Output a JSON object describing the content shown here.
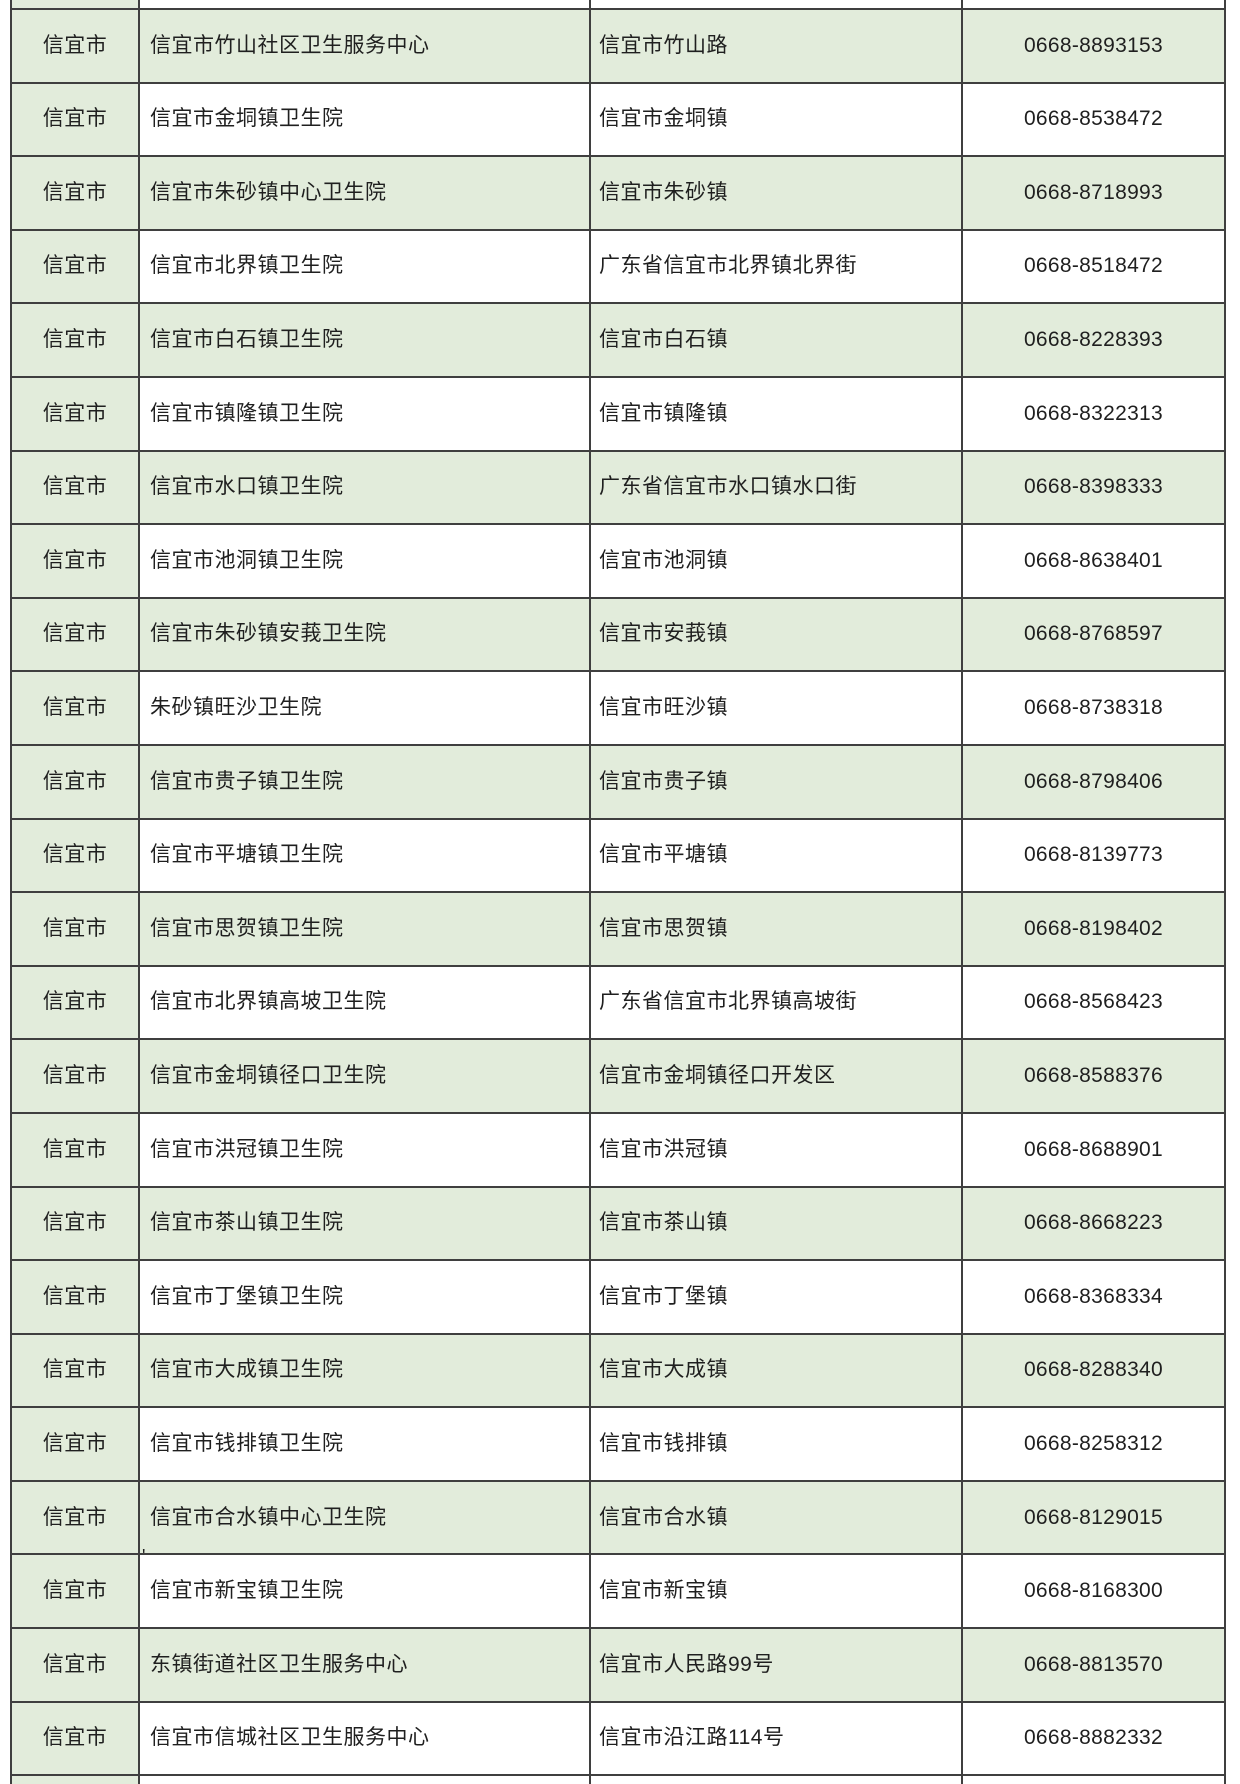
{
  "table": {
    "columns": [
      {
        "key": "city",
        "name": "city-column"
      },
      {
        "key": "name",
        "name": "institution-name-column"
      },
      {
        "key": "address",
        "name": "address-column"
      },
      {
        "key": "phone",
        "name": "phone-column"
      }
    ],
    "rows": [
      {
        "city": "信宜市",
        "name": "信宜市竹山社区卫生服务中心",
        "address": "信宜市竹山路",
        "phone": "0668-8893153",
        "shaded": true
      },
      {
        "city": "信宜市",
        "name": "信宜市金垌镇卫生院",
        "address": "信宜市金垌镇",
        "phone": "0668-8538472",
        "shaded": false
      },
      {
        "city": "信宜市",
        "name": "信宜市朱砂镇中心卫生院",
        "address": "信宜市朱砂镇",
        "phone": "0668-8718993",
        "shaded": true
      },
      {
        "city": "信宜市",
        "name": "信宜市北界镇卫生院",
        "address": "广东省信宜市北界镇北界街",
        "phone": "0668-8518472",
        "shaded": false
      },
      {
        "city": "信宜市",
        "name": "信宜市白石镇卫生院",
        "address": "信宜市白石镇",
        "phone": "0668-8228393",
        "shaded": true
      },
      {
        "city": "信宜市",
        "name": "信宜市镇隆镇卫生院",
        "address": "信宜市镇隆镇",
        "phone": "0668-8322313",
        "shaded": false
      },
      {
        "city": "信宜市",
        "name": "信宜市水口镇卫生院",
        "address": "广东省信宜市水口镇水口街",
        "phone": "0668-8398333",
        "shaded": true
      },
      {
        "city": "信宜市",
        "name": "信宜市池洞镇卫生院",
        "address": "信宜市池洞镇",
        "phone": "0668-8638401",
        "shaded": false
      },
      {
        "city": "信宜市",
        "name": "信宜市朱砂镇安莪卫生院",
        "address": "信宜市安莪镇",
        "phone": "0668-8768597",
        "shaded": true
      },
      {
        "city": "信宜市",
        "name": "朱砂镇旺沙卫生院",
        "address": "信宜市旺沙镇",
        "phone": "0668-8738318",
        "shaded": false
      },
      {
        "city": "信宜市",
        "name": "信宜市贵子镇卫生院",
        "address": "信宜市贵子镇",
        "phone": "0668-8798406",
        "shaded": true
      },
      {
        "city": "信宜市",
        "name": "信宜市平塘镇卫生院",
        "address": "信宜市平塘镇",
        "phone": "0668-8139773",
        "shaded": false
      },
      {
        "city": "信宜市",
        "name": "信宜市思贺镇卫生院",
        "address": "信宜市思贺镇",
        "phone": "0668-8198402",
        "shaded": true
      },
      {
        "city": "信宜市",
        "name": "信宜市北界镇高坡卫生院",
        "address": "广东省信宜市北界镇高坡街",
        "phone": "0668-8568423",
        "shaded": false
      },
      {
        "city": "信宜市",
        "name": "信宜市金垌镇径口卫生院",
        "address": "信宜市金垌镇径口开发区",
        "phone": "0668-8588376",
        "shaded": true
      },
      {
        "city": "信宜市",
        "name": "信宜市洪冠镇卫生院",
        "address": "信宜市洪冠镇",
        "phone": "0668-8688901",
        "shaded": false
      },
      {
        "city": "信宜市",
        "name": "信宜市茶山镇卫生院",
        "address": "信宜市茶山镇",
        "phone": "0668-8668223",
        "shaded": true
      },
      {
        "city": "信宜市",
        "name": "信宜市丁堡镇卫生院",
        "address": "信宜市丁堡镇",
        "phone": "0668-8368334",
        "shaded": false
      },
      {
        "city": "信宜市",
        "name": "信宜市大成镇卫生院",
        "address": "信宜市大成镇",
        "phone": "0668-8288340",
        "shaded": true
      },
      {
        "city": "信宜市",
        "name": "信宜市钱排镇卫生院",
        "address": "信宜市钱排镇",
        "phone": "0668-8258312",
        "shaded": false
      },
      {
        "city": "信宜市",
        "name": "信宜市合水镇中心卫生院",
        "address": "信宜市合水镇",
        "phone": "0668-8129015",
        "shaded": true
      },
      {
        "city": "信宜市",
        "name": "信宜市新宝镇卫生院",
        "address": "信宜市新宝镇",
        "phone": "0668-8168300",
        "shaded": false
      },
      {
        "city": "信宜市",
        "name": "东镇街道社区卫生服务中心",
        "address": "信宜市人民路99号",
        "phone": "0668-8813570",
        "shaded": true
      },
      {
        "city": "信宜市",
        "name": "信宜市信城社区卫生服务中心",
        "address": "信宜市沿江路114号",
        "phone": "0668-8882332",
        "shaded": false
      }
    ]
  },
  "artifacts": {
    "stray_mark": "'"
  },
  "colors": {
    "page_bg": "#ffffff",
    "row_green": "#e2ecdb",
    "row_white": "#ffffff",
    "border": "#3f3f3f",
    "text": "#1f1f1f"
  }
}
